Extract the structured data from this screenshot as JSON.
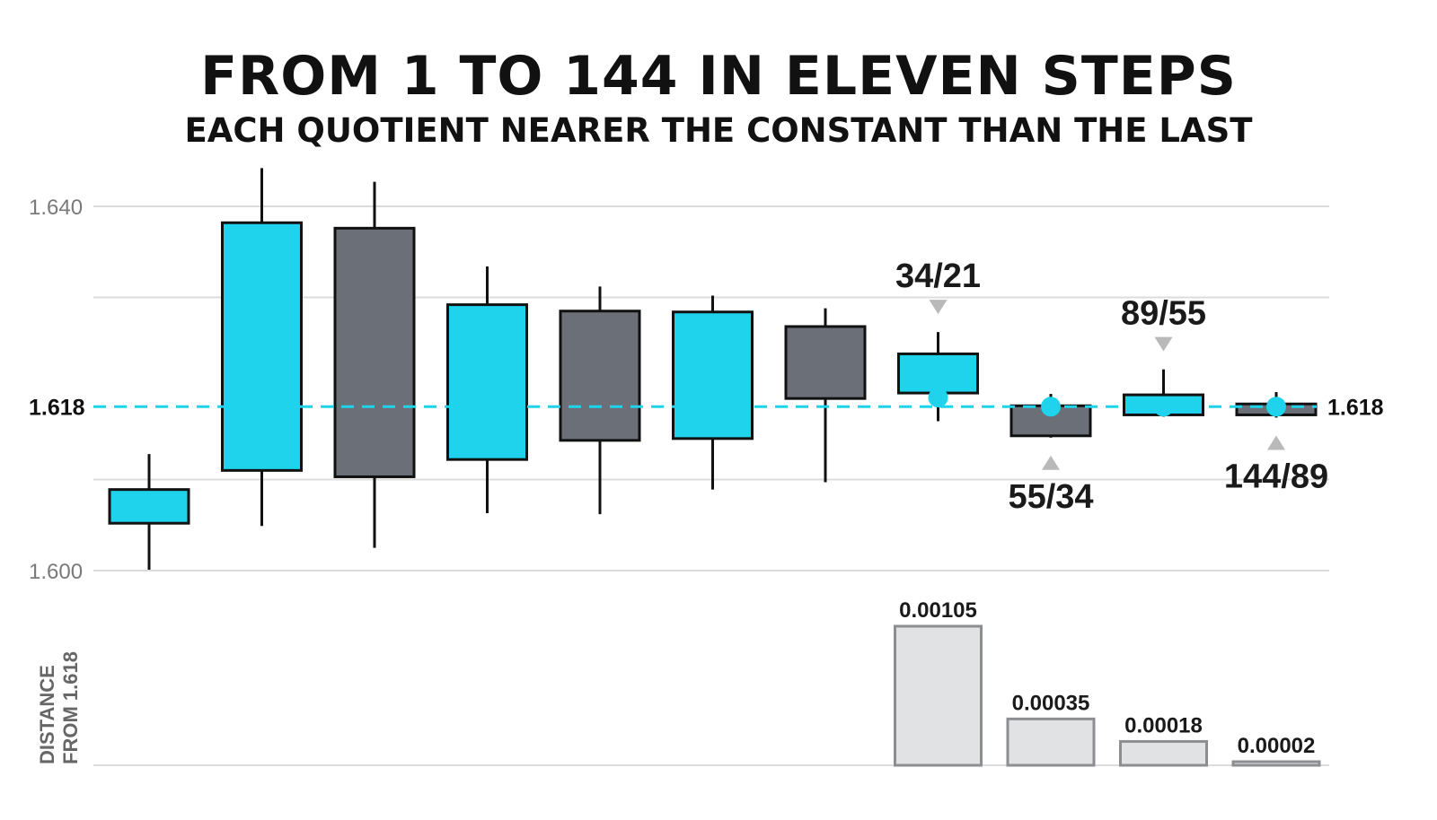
{
  "title": "FROM 1 TO 144 IN ELEVEN STEPS",
  "subtitle": "EACH QUOTIENT NEARER THE CONSTANT THAN THE LAST",
  "colors": {
    "cyan": "#1fd3ec",
    "slate": "#6a6f78",
    "stroke": "#111111",
    "grid": "#dcdcdc",
    "bar_fill": "#e1e2e4",
    "bar_stroke": "#8c8e92",
    "marker": "#8a8a8a"
  },
  "chart_data": [
    {
      "type": "candlestick",
      "ylim": [
        1.6,
        1.64
      ],
      "y_ticks": [
        {
          "value": 1.64,
          "label": "1.640"
        },
        {
          "value": 1.6,
          "label": "1.600"
        }
      ],
      "gridlines": [
        1.6,
        1.61,
        1.63,
        1.64
      ],
      "reference_line": {
        "value": 1.618,
        "left_label": "1.618",
        "right_label": "1.618"
      },
      "candles": [
        {
          "open": 1.6052,
          "close": 1.6089,
          "high": 1.6128,
          "low": 1.6001,
          "color": "cyan"
        },
        {
          "open": 1.611,
          "close": 1.6382,
          "high": 1.6442,
          "low": 1.6049,
          "color": "cyan"
        },
        {
          "open": 1.6376,
          "close": 1.6103,
          "high": 1.6427,
          "low": 1.6025,
          "color": "slate"
        },
        {
          "open": 1.6122,
          "close": 1.6292,
          "high": 1.6334,
          "low": 1.6063,
          "color": "cyan"
        },
        {
          "open": 1.6285,
          "close": 1.6143,
          "high": 1.6312,
          "low": 1.6062,
          "color": "slate"
        },
        {
          "open": 1.6145,
          "close": 1.6284,
          "high": 1.6302,
          "low": 1.6089,
          "color": "cyan"
        },
        {
          "open": 1.6268,
          "close": 1.6189,
          "high": 1.6288,
          "low": 1.6097,
          "color": "slate"
        },
        {
          "open": 1.6195,
          "close": 1.6238,
          "high": 1.6262,
          "low": 1.6164,
          "color": "cyan",
          "point": 1.619
        },
        {
          "open": 1.6181,
          "close": 1.6148,
          "high": 1.6194,
          "low": 1.6146,
          "color": "slate",
          "point": 1.618
        },
        {
          "open": 1.6171,
          "close": 1.6193,
          "high": 1.6221,
          "low": 1.6169,
          "color": "cyan",
          "point": 1.618
        },
        {
          "open": 1.6183,
          "close": 1.6171,
          "high": 1.6196,
          "low": 1.6168,
          "color": "slate",
          "point": 1.618
        }
      ],
      "callouts": [
        {
          "candle": 7,
          "text": "34/21",
          "position": "above"
        },
        {
          "candle": 8,
          "text": "55/34",
          "position": "below"
        },
        {
          "candle": 9,
          "text": "89/55",
          "position": "above"
        },
        {
          "candle": 10,
          "text": "144/89",
          "position": "below"
        }
      ]
    },
    {
      "type": "bar",
      "ylabel": [
        "DISTANCE",
        "FROM 1.618"
      ],
      "bars": [
        {
          "candle": 7,
          "value": 0.00105,
          "label": "0.00105"
        },
        {
          "candle": 8,
          "value": 0.00035,
          "label": "0.00035"
        },
        {
          "candle": 9,
          "value": 0.00018,
          "label": "0.00018"
        },
        {
          "candle": 10,
          "value": 2e-05,
          "label": "0.00002"
        }
      ]
    }
  ]
}
